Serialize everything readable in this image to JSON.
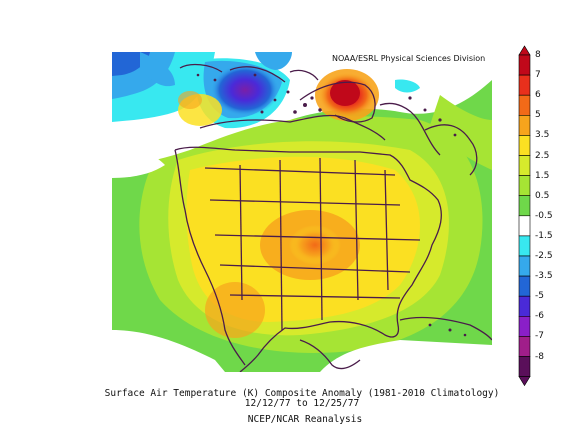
{
  "map": {
    "credit": "NOAA/ESRL Physical Sciences Division",
    "title": "Surface Air Temperature (K) Composite Anomaly (1981-2010 Climatology)",
    "date_range": "12/12/77  to 12/25/77",
    "source": "NCEP/NCAR Reanalysis"
  },
  "legend": {
    "labels": [
      "8",
      "7",
      "6",
      "5",
      "3.5",
      "2.5",
      "1.5",
      "0.5",
      "-0.5",
      "-1.5",
      "-2.5",
      "-3.5",
      "-5",
      "-6",
      "-7",
      "-8"
    ],
    "colors": [
      "#c0081a",
      "#e8301c",
      "#f26a18",
      "#f7a41c",
      "#fbe022",
      "#d6ea2c",
      "#a6e434",
      "#6fd84a",
      "#ffffff",
      "#38e8f0",
      "#35a9ec",
      "#2266d6",
      "#4a2ad8",
      "#8a1fc8",
      "#a01e8a",
      "#5a0f5a"
    ]
  },
  "colors": {
    "outline": "#4a1c4a",
    "land_mask": "#ffffff"
  }
}
